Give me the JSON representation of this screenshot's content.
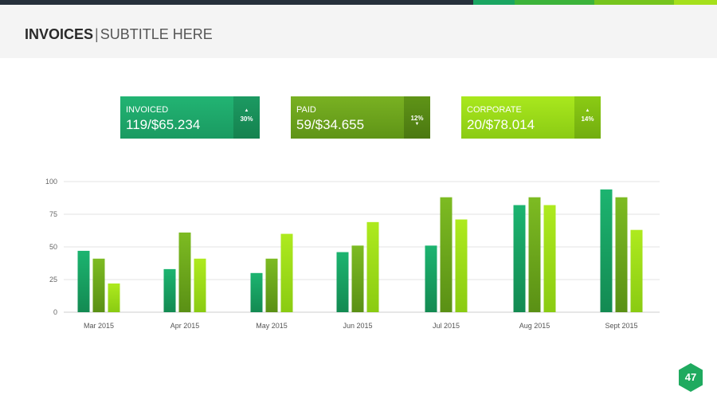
{
  "header": {
    "title": "INVOICES",
    "separator": "|",
    "subtitle": "SUBTITLE HERE"
  },
  "cards": [
    {
      "label": "INVOICED",
      "value": "119/$65.234",
      "percent": "30%",
      "trend": "up",
      "arrow": "▲",
      "color_main": "#1faa6d",
      "color_side": "#178a57"
    },
    {
      "label": "PAID",
      "value": "59/$34.655",
      "percent": "12%",
      "trend": "down",
      "arrow": "▼",
      "color_main": "#6fa41c",
      "color_side": "#578415"
    },
    {
      "label": "CORPORATE",
      "value": "20/$78.014",
      "percent": "14%",
      "trend": "up",
      "arrow": "▲",
      "color_main": "#9ede17",
      "color_side": "#7fb812"
    }
  ],
  "chart_data": {
    "type": "bar",
    "categories": [
      "Mar 2015",
      "Apr 2015",
      "May 2015",
      "Jun 2015",
      "Jul 2015",
      "Aug 2015",
      "Sept 2015"
    ],
    "series": [
      {
        "values": [
          47,
          33,
          30,
          46,
          51,
          82,
          94
        ],
        "color": "#17a663"
      },
      {
        "values": [
          41,
          61,
          41,
          51,
          88,
          88,
          88
        ],
        "color": "#6fab1e"
      },
      {
        "values": [
          22,
          41,
          60,
          69,
          71,
          82,
          63
        ],
        "color": "#a2e21a"
      }
    ],
    "yticks": [
      0,
      25,
      50,
      75,
      100
    ],
    "ylim": [
      0,
      100
    ],
    "grid": true
  },
  "page_number": "47",
  "colors": {
    "accent": "#1faa6d",
    "dark": "#26303b",
    "grid": "#e3e3e3"
  }
}
